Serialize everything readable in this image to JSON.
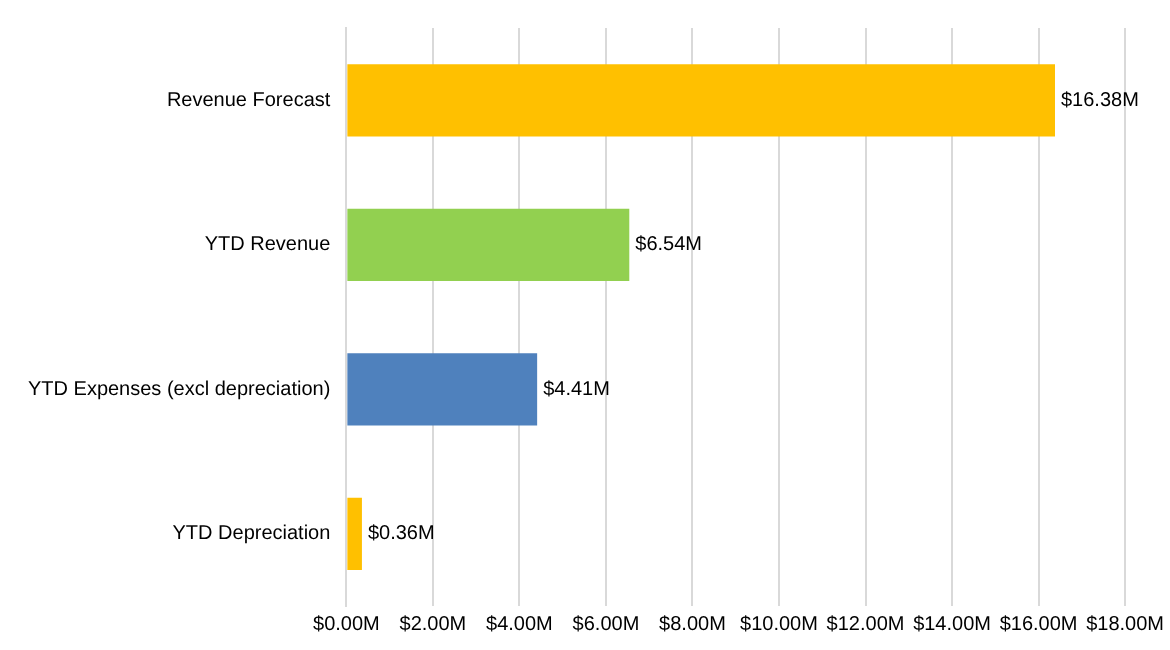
{
  "chart_data": {
    "type": "bar",
    "orientation": "horizontal",
    "categories": [
      "Revenue Forecast",
      "YTD Revenue",
      "YTD Expenses (excl depreciation)",
      "YTD Depreciation"
    ],
    "values": [
      16.38,
      6.54,
      4.41,
      0.36
    ],
    "colors": [
      "#ffc000",
      "#92d050",
      "#4f81bd",
      "#ffc000"
    ],
    "value_labels": [
      "$16.38M",
      "$6.54M",
      "$4.41M",
      "$0.36M"
    ],
    "xlim": [
      0,
      18
    ],
    "xticks": [
      {
        "value": 0,
        "label": "$0.00M"
      },
      {
        "value": 2,
        "label": "$2.00M"
      },
      {
        "value": 4,
        "label": "$4.00M"
      },
      {
        "value": 6,
        "label": "$6.00M"
      },
      {
        "value": 8,
        "label": "$8.00M"
      },
      {
        "value": 10,
        "label": "$10.00M"
      },
      {
        "value": 12,
        "label": "$12.00M"
      },
      {
        "value": 14,
        "label": "$14.00M"
      },
      {
        "value": 16,
        "label": "$16.00M"
      },
      {
        "value": 18,
        "label": "$18.00M"
      }
    ],
    "grid": "x",
    "legend": false
  }
}
